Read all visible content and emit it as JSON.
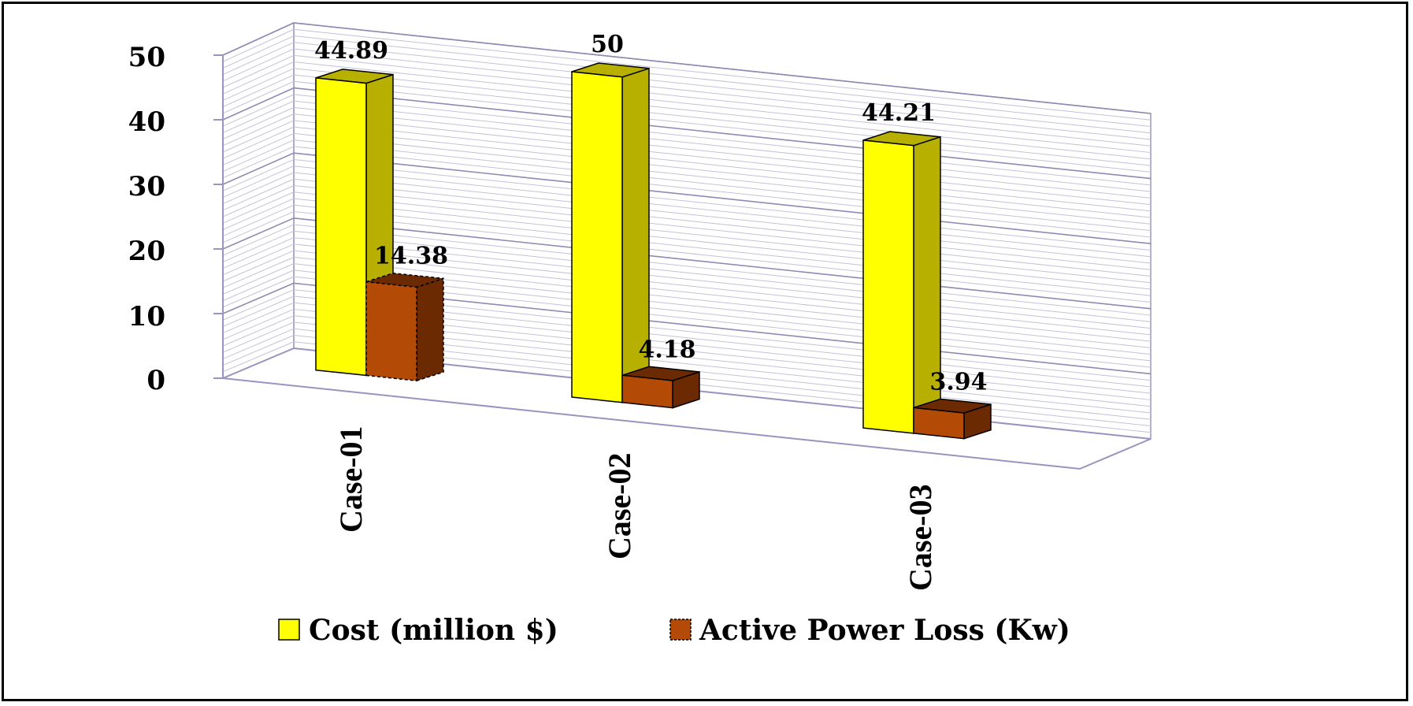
{
  "chart_data": {
    "type": "bar",
    "categories": [
      "Case-01",
      "Case-02",
      "Case-03"
    ],
    "series": [
      {
        "name": "Cost (million $)",
        "values": [
          44.89,
          50,
          44.21
        ],
        "color": "#ffff00",
        "side_color": "#b8b000"
      },
      {
        "name": "Active Power Loss (Kw)",
        "values": [
          14.38,
          4.18,
          3.94
        ],
        "color": "#b34a06",
        "side_color": "#6b2a02"
      }
    ],
    "data_labels": [
      "44.89",
      "50",
      "44.21",
      "14.38",
      "4.18",
      "3.94"
    ],
    "y_ticks": [
      "0",
      "10",
      "20",
      "30",
      "40",
      "50"
    ],
    "ylim": [
      0,
      50
    ],
    "grid": true,
    "legend_position": "bottom",
    "three_d": true
  }
}
